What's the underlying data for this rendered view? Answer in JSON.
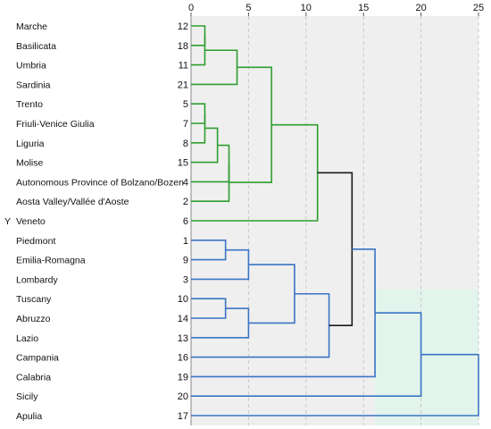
{
  "chart_data": {
    "type": "dendrogram",
    "title": "",
    "xlabel": "",
    "ylabel": "",
    "x_ticks": [
      0,
      5,
      10,
      15,
      20,
      25
    ],
    "xlim": [
      0,
      25
    ],
    "y_marker": "Y",
    "colors": {
      "group_green": "#2e9e2e",
      "group_blue": "#3a74c4",
      "root": "#1a1a1a",
      "background": "#efefef",
      "highlight_band": "#e2f4ec",
      "grid": "#c8c8c8"
    },
    "leaves": [
      {
        "label": "Marche",
        "id": "12"
      },
      {
        "label": "Basilicata",
        "id": "18"
      },
      {
        "label": "Umbria",
        "id": "11"
      },
      {
        "label": "Sardinia",
        "id": "21"
      },
      {
        "label": "Trento",
        "id": "5"
      },
      {
        "label": "Friuli-Venice Giulia",
        "id": "7"
      },
      {
        "label": "Liguria",
        "id": "8"
      },
      {
        "label": "Molise",
        "id": "15"
      },
      {
        "label": "Autonomous Province of Bolzano/Bozen",
        "id": "4"
      },
      {
        "label": "Aosta Valley/Vallée d'Aoste",
        "id": "2"
      },
      {
        "label": "Veneto",
        "id": "6"
      },
      {
        "label": "Piedmont",
        "id": "1"
      },
      {
        "label": "Emilia-Romagna",
        "id": "9"
      },
      {
        "label": "Lombardy",
        "id": "3"
      },
      {
        "label": "Tuscany",
        "id": "10"
      },
      {
        "label": "Abruzzo",
        "id": "14"
      },
      {
        "label": "Lazio",
        "id": "13"
      },
      {
        "label": "Campania",
        "id": "16"
      },
      {
        "label": "Calabria",
        "id": "19"
      },
      {
        "label": "Sicily",
        "id": "20"
      },
      {
        "label": "Apulia",
        "id": "17"
      }
    ],
    "merges": [
      {
        "a": "L0",
        "b": "L1",
        "height": 1.2,
        "color": "group_green"
      },
      {
        "a": "M0",
        "b": "L2",
        "height": 1.2,
        "color": "group_green"
      },
      {
        "a": "M1",
        "b": "L3",
        "height": 4.0,
        "color": "group_green"
      },
      {
        "a": "L4",
        "b": "L5",
        "height": 1.2,
        "color": "group_green"
      },
      {
        "a": "M3",
        "b": "L6",
        "height": 1.2,
        "color": "group_green"
      },
      {
        "a": "M4",
        "b": "L7",
        "height": 2.3,
        "color": "group_green"
      },
      {
        "a": "M5",
        "b": "L8",
        "height": 3.3,
        "color": "group_green"
      },
      {
        "a": "M6",
        "b": "L9",
        "height": 3.3,
        "color": "group_green"
      },
      {
        "a": "M2",
        "b": "M7",
        "height": 7.0,
        "color": "group_green"
      },
      {
        "a": "M8",
        "b": "L10",
        "height": 11.0,
        "color": "group_green"
      },
      {
        "a": "L11",
        "b": "L12",
        "height": 3.0,
        "color": "group_blue"
      },
      {
        "a": "M10",
        "b": "L13",
        "height": 5.0,
        "color": "group_blue"
      },
      {
        "a": "L14",
        "b": "L15",
        "height": 3.0,
        "color": "group_blue"
      },
      {
        "a": "M12",
        "b": "L16",
        "height": 5.0,
        "color": "group_blue"
      },
      {
        "a": "M11",
        "b": "M13",
        "height": 9.0,
        "color": "group_blue"
      },
      {
        "a": "M14",
        "b": "L17",
        "height": 12.0,
        "color": "group_blue"
      },
      {
        "a": "M9",
        "b": "M15",
        "height": 14.0,
        "color": "root"
      },
      {
        "a": "M16",
        "b": "L18",
        "height": 16.0,
        "color": "group_blue"
      },
      {
        "a": "M17",
        "b": "L19",
        "height": 20.0,
        "color": "group_blue"
      },
      {
        "a": "M18",
        "b": "L20",
        "height": 25.0,
        "color": "group_blue"
      }
    ]
  }
}
